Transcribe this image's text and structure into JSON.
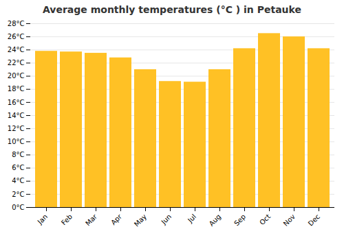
{
  "chart_data": {
    "type": "bar",
    "title": "Average monthly temperatures (°C ) in Petauke",
    "categories": [
      "Jan",
      "Feb",
      "Mar",
      "Apr",
      "May",
      "Jun",
      "Jul",
      "Aug",
      "Sep",
      "Oct",
      "Nov",
      "Dec"
    ],
    "values": [
      23.8,
      23.7,
      23.5,
      22.8,
      21.0,
      19.2,
      19.1,
      21.0,
      24.2,
      26.5,
      26.0,
      24.2
    ],
    "color": "#FFC125",
    "ylim": [
      0,
      28
    ],
    "yticks": [
      {
        "value": 0,
        "label": "0°C"
      },
      {
        "value": 2,
        "label": "2°C"
      },
      {
        "value": 4,
        "label": "4°C"
      },
      {
        "value": 6,
        "label": "6°C"
      },
      {
        "value": 8,
        "label": "8°C"
      },
      {
        "value": 10,
        "label": "10°C"
      },
      {
        "value": 12,
        "label": "12°C"
      },
      {
        "value": 14,
        "label": "14°C"
      },
      {
        "value": 16,
        "label": "16°C"
      },
      {
        "value": 18,
        "label": "18°C"
      },
      {
        "value": 20,
        "label": "20°C"
      },
      {
        "value": 22,
        "label": "22°C"
      },
      {
        "value": 24,
        "label": "24°C"
      },
      {
        "value": 26,
        "label": "26°C"
      },
      {
        "value": 28,
        "label": "28°C"
      }
    ],
    "grid": true
  }
}
